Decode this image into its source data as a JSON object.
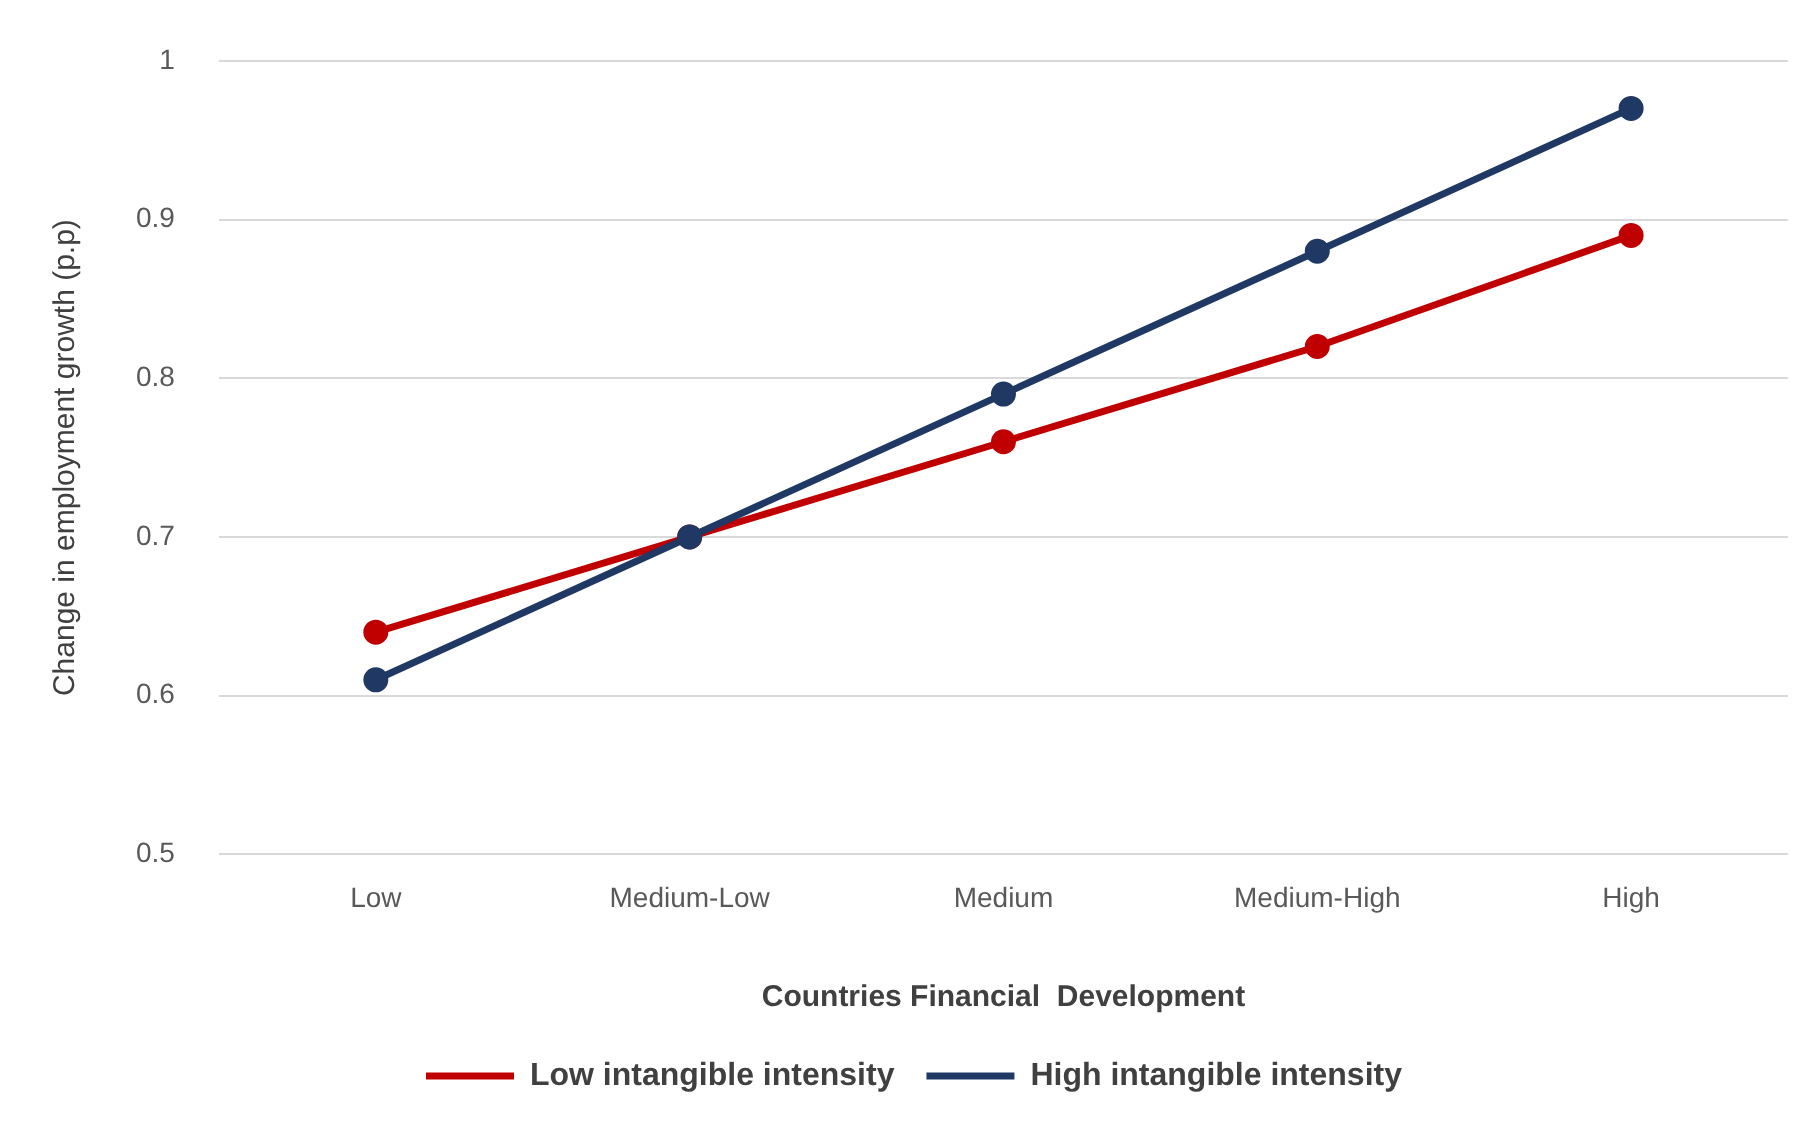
{
  "chart_data": {
    "type": "line",
    "xlabel": "Countries Financial  Development",
    "ylabel": "Change in employment growth (p.p)",
    "categories": [
      "Low",
      "Medium-Low",
      "Medium",
      "Medium-High",
      "High"
    ],
    "series": [
      {
        "name": "Low intangible intensity",
        "color": "#c00000",
        "values": [
          0.64,
          0.7,
          0.76,
          0.82,
          0.89
        ]
      },
      {
        "name": "High intangible intensity",
        "color": "#1f3864",
        "values": [
          0.61,
          0.7,
          0.79,
          0.88,
          0.97
        ]
      }
    ],
    "ylim": [
      0.5,
      1
    ],
    "yticks": [
      0.5,
      0.6,
      0.7,
      0.8,
      0.9,
      1
    ],
    "grid": "y",
    "legend": "bottom",
    "marker": "circle",
    "line_style": "solid"
  }
}
